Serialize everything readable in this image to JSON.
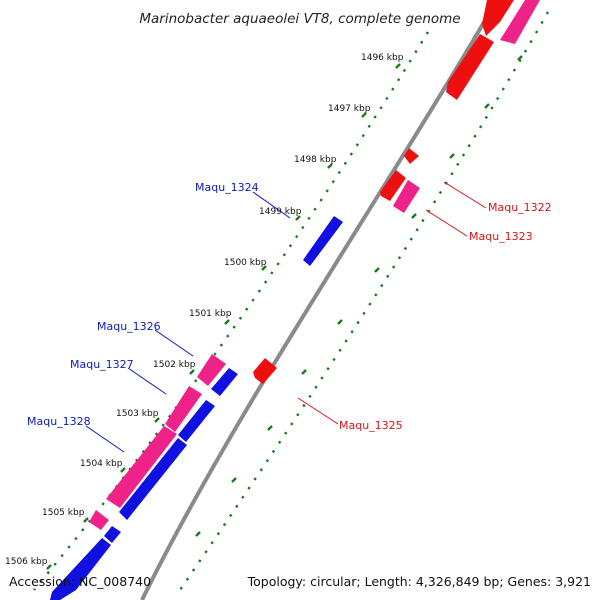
{
  "title": "Marinobacter aquaeolei VT8, complete genome",
  "accession_text": "Accession: NC_008740",
  "topology_text": "Topology: circular; Length: 4,326,849 bp; Genes: 3,921",
  "colors": {
    "backbone": "#8a8a8a",
    "ticks": "#1a7a1a",
    "gene_blue": "#1010e0",
    "gene_red": "#ee1010",
    "gene_pink": "#ee2288",
    "label_blue": "#0a1ab8",
    "label_red": "#d4141c"
  },
  "kbp_labels": [
    "1496 kbp",
    "1497 kbp",
    "1498 kbp",
    "1499 kbp",
    "1500 kbp",
    "1501 kbp",
    "1502 kbp",
    "1503 kbp",
    "1504 kbp",
    "1505 kbp",
    "1506 kbp"
  ],
  "gene_labels": {
    "left": [
      "Maqu_1324",
      "Maqu_1326",
      "Maqu_1327",
      "Maqu_1328"
    ],
    "right": [
      "Maqu_1322",
      "Maqu_1323",
      "Maqu_1325"
    ]
  }
}
